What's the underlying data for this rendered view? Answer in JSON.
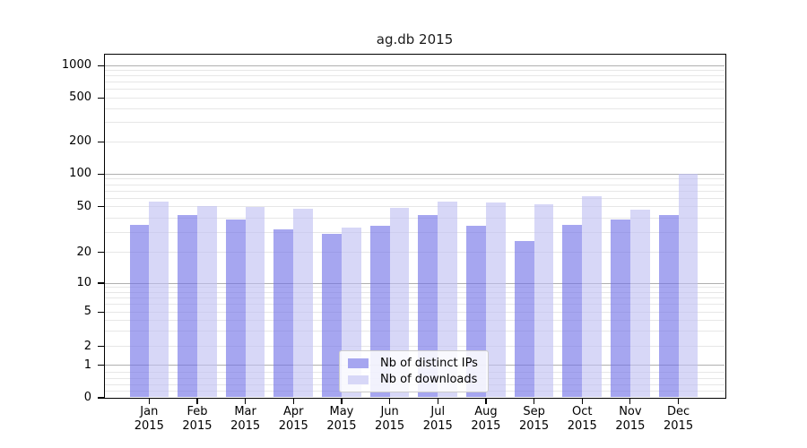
{
  "title": "ag.db 2015",
  "colors": {
    "ips_solid": "#a6a6f0",
    "ips_bar": "rgba(111,111,231,0.62)",
    "downloads_solid": "#d7d7f7",
    "downloads_bar": "rgba(190,190,242,0.62)",
    "grid_major": "#b0b0b0",
    "grid_minor": "#e7e7e7",
    "axis": "#000000"
  },
  "legend": {
    "items": [
      {
        "label": "Nb of distinct IPs",
        "series": "ips"
      },
      {
        "label": "Nb of downloads",
        "series": "downloads"
      }
    ]
  },
  "y_axis": {
    "tick_labels": [
      "1000",
      "500",
      "200",
      "100",
      "50",
      "20",
      "10",
      "5",
      "2",
      "1",
      "0"
    ],
    "major_gridline_values": [
      1,
      10,
      100,
      1000
    ],
    "minor_gridline_values": [
      0.2,
      0.4,
      0.6,
      0.8,
      2,
      3,
      4,
      5,
      6,
      7,
      8,
      9,
      20,
      30,
      40,
      50,
      60,
      70,
      80,
      90,
      200,
      300,
      400,
      500,
      600,
      700,
      800,
      900
    ]
  },
  "x_axis": {
    "months": [
      "Jan",
      "Feb",
      "Mar",
      "Apr",
      "May",
      "Jun",
      "Jul",
      "Aug",
      "Sep",
      "Oct",
      "Nov",
      "Dec"
    ],
    "year": "2015"
  },
  "chart_data": {
    "type": "bar",
    "title": "ag.db 2015",
    "categories": [
      "Jan 2015",
      "Feb 2015",
      "Mar 2015",
      "Apr 2015",
      "May 2015",
      "Jun 2015",
      "Jul 2015",
      "Aug 2015",
      "Sep 2015",
      "Oct 2015",
      "Nov 2015",
      "Dec 2015"
    ],
    "series": [
      {
        "name": "Nb of distinct IPs",
        "values": [
          35,
          42,
          39,
          32,
          29,
          34,
          42,
          34,
          25,
          35,
          39,
          42
        ]
      },
      {
        "name": "Nb of downloads",
        "values": [
          56,
          51,
          50,
          48,
          33,
          49,
          56,
          55,
          53,
          63,
          47,
          100
        ]
      }
    ],
    "xlabel": "",
    "ylabel": "",
    "yscale": "symlog",
    "yticks": [
      0,
      1,
      2,
      5,
      10,
      20,
      50,
      100,
      200,
      500,
      1000
    ],
    "ylim": [
      0,
      1500
    ],
    "grid": true,
    "legend_position": "lower center"
  }
}
